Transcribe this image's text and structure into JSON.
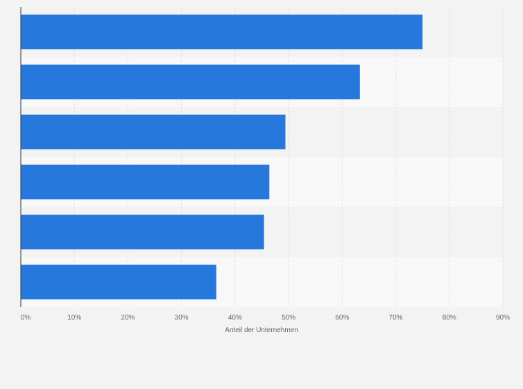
{
  "chart_data": {
    "type": "bar",
    "orientation": "horizontal",
    "categories": [
      "",
      "",
      "",
      "",
      "",
      ""
    ],
    "values": [
      75,
      63.3,
      49.4,
      46.4,
      45.4,
      36.5
    ],
    "xlabel": "Anteil der Unternehmen",
    "ylabel": "",
    "xlim": [
      0,
      90
    ],
    "x_ticks": [
      0,
      10,
      20,
      30,
      40,
      50,
      60,
      70,
      80,
      90
    ],
    "x_tick_labels": [
      "0%",
      "10%",
      "20%",
      "30%",
      "40%",
      "50%",
      "60%",
      "70%",
      "80%",
      "90%"
    ],
    "grid": true,
    "legend": "none",
    "colors": {
      "bar": "#2778dd",
      "band_dark": "#f3f3f3",
      "band_light": "#f8f8f8",
      "grid": "#dcdcdc",
      "axis": "#333333"
    }
  }
}
